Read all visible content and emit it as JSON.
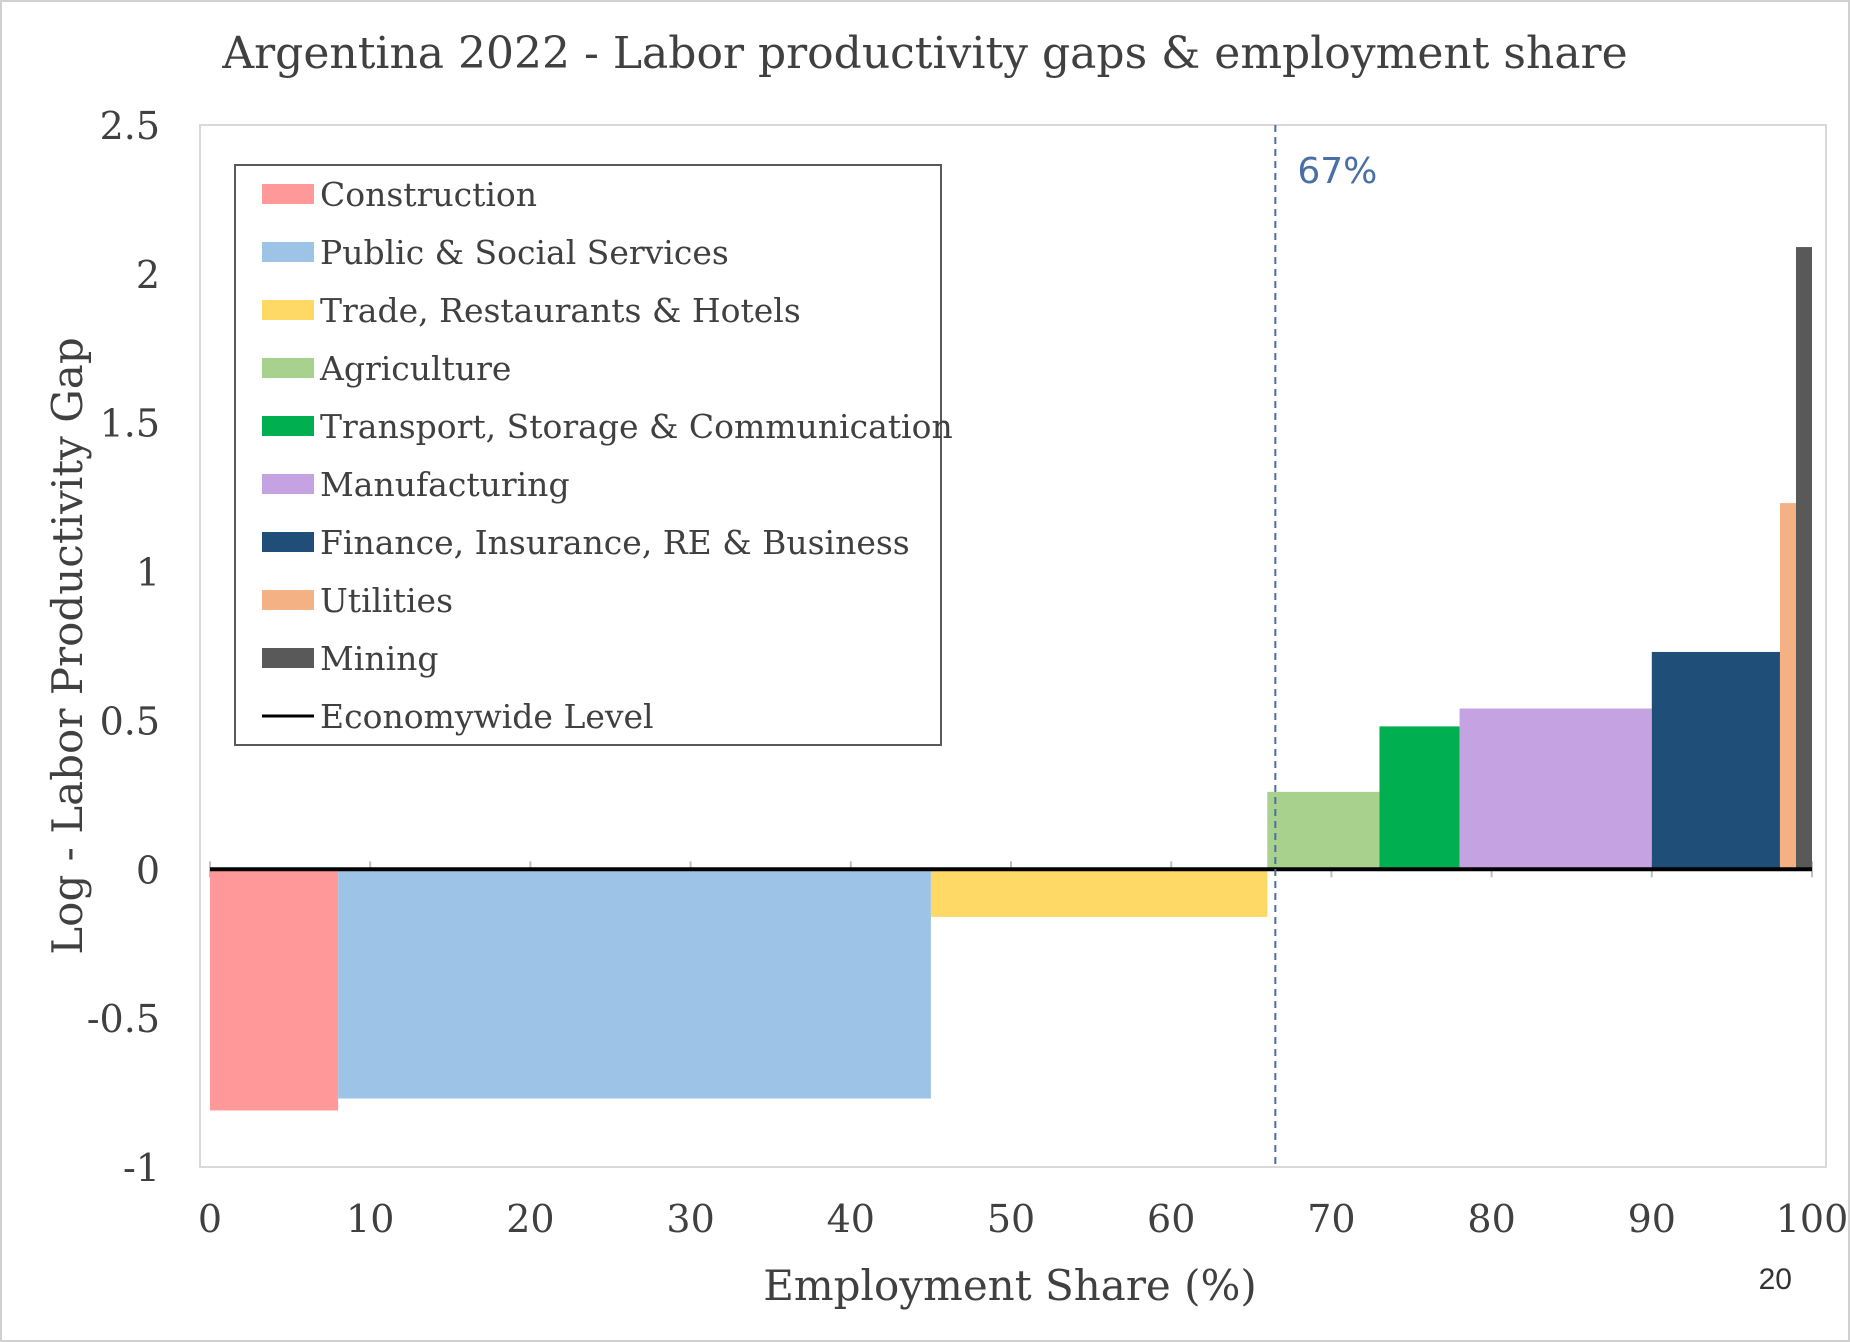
{
  "page_number": "20",
  "chart_data": {
    "type": "bar",
    "title": "Argentina 2022 - Labor productivity gaps & employment share",
    "xlabel": "Employment Share (%)",
    "ylabel": "Log - Labor Productivity Gap",
    "xlim": [
      0,
      100
    ],
    "ylim": [
      -1,
      2.5
    ],
    "x_ticks": [
      "0",
      "10",
      "20",
      "30",
      "40",
      "50",
      "60",
      "70",
      "80",
      "90",
      "100"
    ],
    "y_ticks": [
      "2.5",
      "2",
      "1.5",
      "1",
      "0.5",
      "0",
      "-0.5",
      "-1"
    ],
    "grid": false,
    "legend_position": "top-left",
    "reference_line": {
      "x": 66.5,
      "label": "67%",
      "color": "#4a6fa5",
      "style": "dashed"
    },
    "economywide_level": {
      "name": "Economywide Level",
      "y": 0,
      "color": "#000000"
    },
    "series": [
      {
        "name": "Construction",
        "x_start": 0,
        "x_end": 8,
        "value": -0.81,
        "color": "#ff9999"
      },
      {
        "name": "Public & Social Services",
        "x_start": 8,
        "x_end": 45,
        "value": -0.77,
        "color": "#9dc3e6"
      },
      {
        "name": "Trade, Restaurants & Hotels",
        "x_start": 45,
        "x_end": 66,
        "value": -0.16,
        "color": "#ffd966"
      },
      {
        "name": "Agriculture",
        "x_start": 66,
        "x_end": 73,
        "value": 0.26,
        "color": "#a9d18e"
      },
      {
        "name": "Transport, Storage & Communication",
        "x_start": 73,
        "x_end": 78,
        "value": 0.48,
        "color": "#00b050"
      },
      {
        "name": "Manufacturing",
        "x_start": 78,
        "x_end": 90,
        "value": 0.54,
        "color": "#c5a3e3"
      },
      {
        "name": "Finance, Insurance, RE & Business",
        "x_start": 90,
        "x_end": 98,
        "value": 0.73,
        "color": "#1f4e79"
      },
      {
        "name": "Utilities",
        "x_start": 98,
        "x_end": 99,
        "value": 1.23,
        "color": "#f4b183"
      },
      {
        "name": "Mining",
        "x_start": 99,
        "x_end": 100,
        "value": 2.09,
        "color": "#595959"
      }
    ]
  }
}
